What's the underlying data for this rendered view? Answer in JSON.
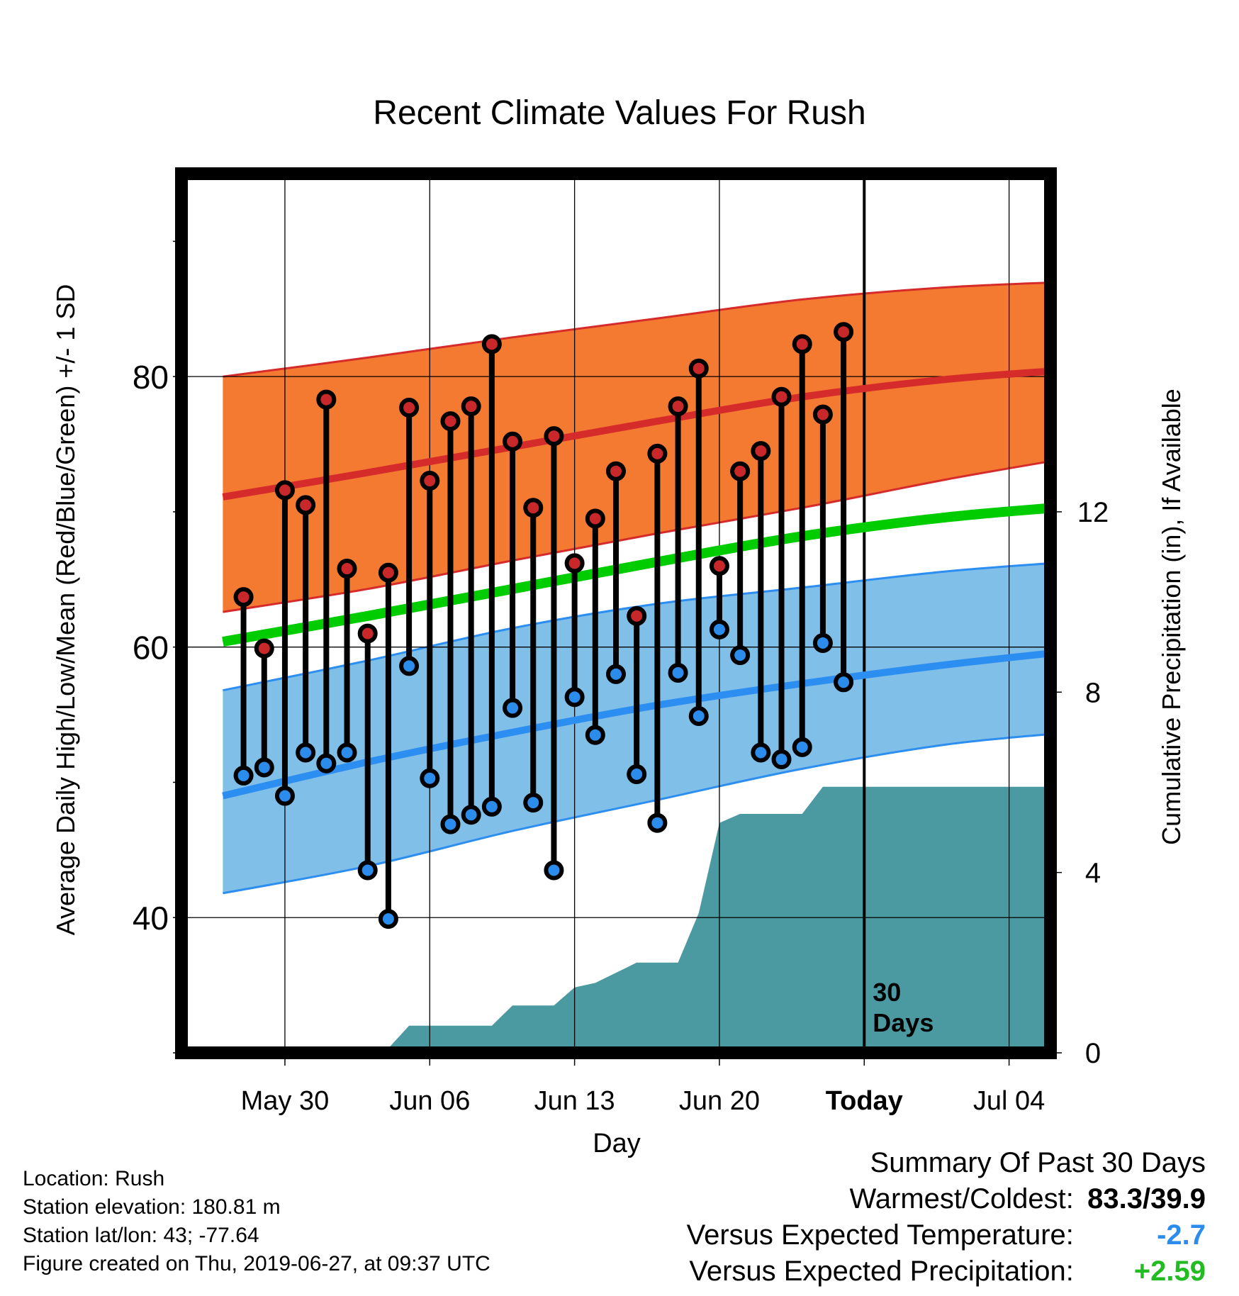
{
  "chart_data": {
    "type": "line",
    "title": "Recent Climate Values For Rush",
    "xlabel": "Day",
    "ylabel": "Average Daily High/Low/Mean (Red/Blue/Green) +/- 1 SD",
    "y2label": "Cumulative Precipitation (in), If Available",
    "x_range": [
      "2019-05-25",
      "2019-07-06"
    ],
    "ylim": [
      30,
      95
    ],
    "y2lim": [
      0,
      19.5
    ],
    "y_ticks": [
      40,
      60,
      80
    ],
    "y2_ticks": [
      0,
      4,
      8,
      12
    ],
    "x_ticks": [
      {
        "date": "2019-05-30",
        "label": "May 30"
      },
      {
        "date": "2019-06-06",
        "label": "Jun 06"
      },
      {
        "date": "2019-06-13",
        "label": "Jun 13"
      },
      {
        "date": "2019-06-20",
        "label": "Jun 20"
      },
      {
        "date": "2019-06-27",
        "label": "Today"
      },
      {
        "date": "2019-07-04",
        "label": "Jul 04"
      }
    ],
    "today_marker": {
      "date": "2019-06-27",
      "label_line1": "30",
      "label_line2": "Days"
    },
    "grid": true,
    "normals": {
      "dates": [
        "2019-05-27",
        "2019-06-03",
        "2019-06-10",
        "2019-06-17",
        "2019-06-24",
        "2019-07-01",
        "2019-07-07"
      ],
      "high_mean": [
        71.1,
        72.9,
        74.8,
        76.7,
        78.5,
        79.8,
        80.5
      ],
      "high_upper": [
        80.0,
        81.4,
        82.9,
        84.3,
        85.7,
        86.6,
        87.0
      ],
      "high_lower": [
        62.6,
        64.3,
        66.4,
        68.4,
        70.3,
        72.4,
        74.0
      ],
      "mean": [
        60.4,
        62.3,
        64.3,
        66.3,
        68.2,
        69.6,
        70.4
      ],
      "low_mean": [
        49.0,
        51.5,
        53.7,
        55.7,
        57.3,
        58.7,
        59.7
      ],
      "low_upper": [
        56.8,
        59.0,
        61.4,
        63.2,
        64.4,
        65.6,
        66.3
      ],
      "low_lower": [
        41.8,
        43.8,
        46.4,
        48.7,
        51.0,
        52.8,
        53.7
      ]
    },
    "colors": {
      "high_band": "#f47a31",
      "high_line": "#d52b2b",
      "low_band": "#80bfe7",
      "low_line": "#2c8ef0",
      "mean_line": "#00cc00",
      "precip": "#4b9aa2",
      "high_point": "#c8282a",
      "low_point": "#2b8cec"
    },
    "series": [
      {
        "name": "High",
        "dates": [
          "2019-05-28",
          "2019-05-29",
          "2019-05-30",
          "2019-05-31",
          "2019-06-01",
          "2019-06-02",
          "2019-06-03",
          "2019-06-04",
          "2019-06-05",
          "2019-06-06",
          "2019-06-07",
          "2019-06-08",
          "2019-06-09",
          "2019-06-10",
          "2019-06-11",
          "2019-06-12",
          "2019-06-13",
          "2019-06-14",
          "2019-06-15",
          "2019-06-16",
          "2019-06-17",
          "2019-06-18",
          "2019-06-19",
          "2019-06-20",
          "2019-06-21",
          "2019-06-22",
          "2019-06-23",
          "2019-06-24",
          "2019-06-25",
          "2019-06-26"
        ],
        "values": [
          63.7,
          59.9,
          71.6,
          70.5,
          78.3,
          65.8,
          61.0,
          65.5,
          77.7,
          72.3,
          76.7,
          77.8,
          82.4,
          75.2,
          70.3,
          75.6,
          66.2,
          69.5,
          73.0,
          62.3,
          74.3,
          77.8,
          80.6,
          66.0,
          73.0,
          74.5,
          78.5,
          82.4,
          77.2,
          83.3
        ]
      },
      {
        "name": "Low",
        "dates": [
          "2019-05-28",
          "2019-05-29",
          "2019-05-30",
          "2019-05-31",
          "2019-06-01",
          "2019-06-02",
          "2019-06-03",
          "2019-06-04",
          "2019-06-05",
          "2019-06-06",
          "2019-06-07",
          "2019-06-08",
          "2019-06-09",
          "2019-06-10",
          "2019-06-11",
          "2019-06-12",
          "2019-06-13",
          "2019-06-14",
          "2019-06-15",
          "2019-06-16",
          "2019-06-17",
          "2019-06-18",
          "2019-06-19",
          "2019-06-20",
          "2019-06-21",
          "2019-06-22",
          "2019-06-23",
          "2019-06-24",
          "2019-06-25",
          "2019-06-26"
        ],
        "values": [
          50.5,
          51.1,
          49.0,
          52.2,
          51.4,
          52.2,
          43.5,
          39.9,
          58.6,
          50.3,
          46.9,
          47.6,
          48.2,
          55.5,
          48.5,
          43.5,
          56.3,
          53.5,
          58.0,
          50.6,
          47.0,
          58.1,
          54.9,
          61.3,
          59.4,
          52.2,
          51.7,
          52.6,
          60.3,
          57.4
        ]
      },
      {
        "name": "Cumulative Precipitation",
        "dates": [
          "2019-05-25",
          "2019-06-01",
          "2019-06-02",
          "2019-06-04",
          "2019-06-05",
          "2019-06-09",
          "2019-06-10",
          "2019-06-12",
          "2019-06-13",
          "2019-06-14",
          "2019-06-16",
          "2019-06-18",
          "2019-06-19",
          "2019-06-20",
          "2019-06-21",
          "2019-06-23",
          "2019-06-24",
          "2019-06-25",
          "2019-07-06"
        ],
        "values": [
          0,
          0,
          0.1,
          0.1,
          0.6,
          0.6,
          1.05,
          1.05,
          1.45,
          1.55,
          2.0,
          2.0,
          3.1,
          5.1,
          5.3,
          5.3,
          5.3,
          5.9,
          5.9
        ]
      }
    ]
  },
  "info": {
    "location": "Location: Rush",
    "elevation": "Station elevation: 180.81 m",
    "latlon": "Station lat/lon: 43; -77.64",
    "created": "Figure created on Thu, 2019-06-27, at 09:37 UTC"
  },
  "summary": {
    "title": "Summary Of Past 30 Days",
    "warm_label": "Warmest/Coldest:",
    "warm_value": "83.3/39.9",
    "temp_label": "Versus Expected Temperature:",
    "temp_value": "-2.7",
    "temp_color": "#2b8cec",
    "precip_label": "Versus Expected Precipitation:",
    "precip_value": "+2.59",
    "precip_color": "#22bb22"
  }
}
